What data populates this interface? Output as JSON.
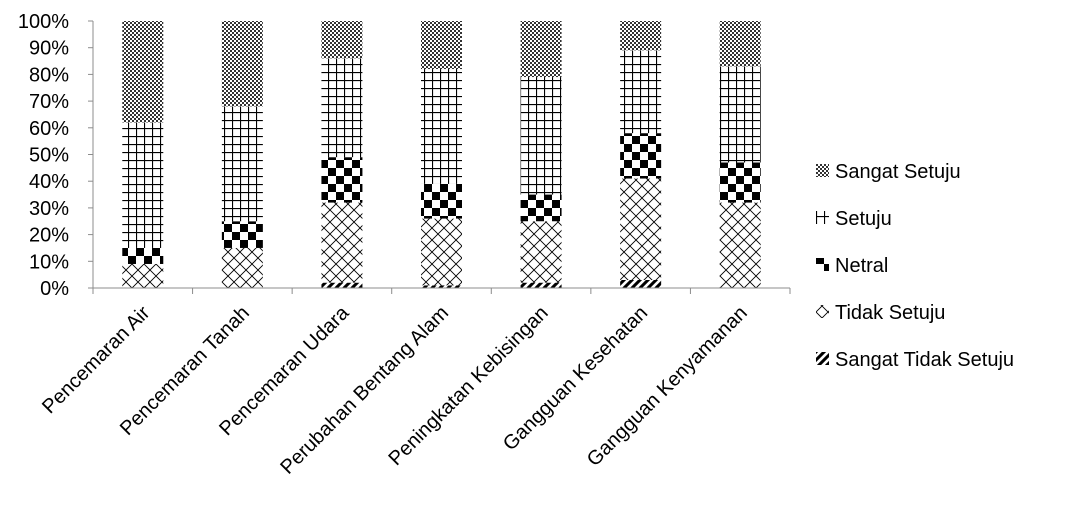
{
  "chart_data": {
    "type": "bar",
    "stacked": true,
    "percent": true,
    "title": "",
    "xlabel": "",
    "ylabel": "",
    "ylim": [
      0,
      100
    ],
    "y_ticks": [
      "0%",
      "10%",
      "20%",
      "30%",
      "40%",
      "50%",
      "60%",
      "70%",
      "80%",
      "90%",
      "100%"
    ],
    "categories": [
      "Pencemaran Air",
      "Pencemaran Tanah",
      "Pencemaran Udara",
      "Perubahan Bentang Alam",
      "Peningkatan Kebisingan",
      "Gangguan Kesehatan",
      "Gangguan Kenyamanan"
    ],
    "series": [
      {
        "name": "Sangat Tidak Setuju",
        "pattern": "diagonal-dots",
        "values": [
          0,
          0,
          2,
          1,
          2,
          3,
          0
        ]
      },
      {
        "name": "Tidak Setuju",
        "pattern": "crosshatch",
        "values": [
          9,
          15,
          30,
          25,
          23,
          38,
          32
        ]
      },
      {
        "name": "Netral",
        "pattern": "checkerboard",
        "values": [
          6,
          10,
          17,
          13,
          10,
          17,
          15
        ]
      },
      {
        "name": "Setuju",
        "pattern": "grid",
        "values": [
          47,
          43,
          37,
          43,
          44,
          31,
          36
        ]
      },
      {
        "name": "Sangat Setuju",
        "pattern": "dense-dots",
        "values": [
          38,
          32,
          14,
          18,
          21,
          11,
          17
        ]
      }
    ],
    "legend_position": "right",
    "grid": false
  }
}
